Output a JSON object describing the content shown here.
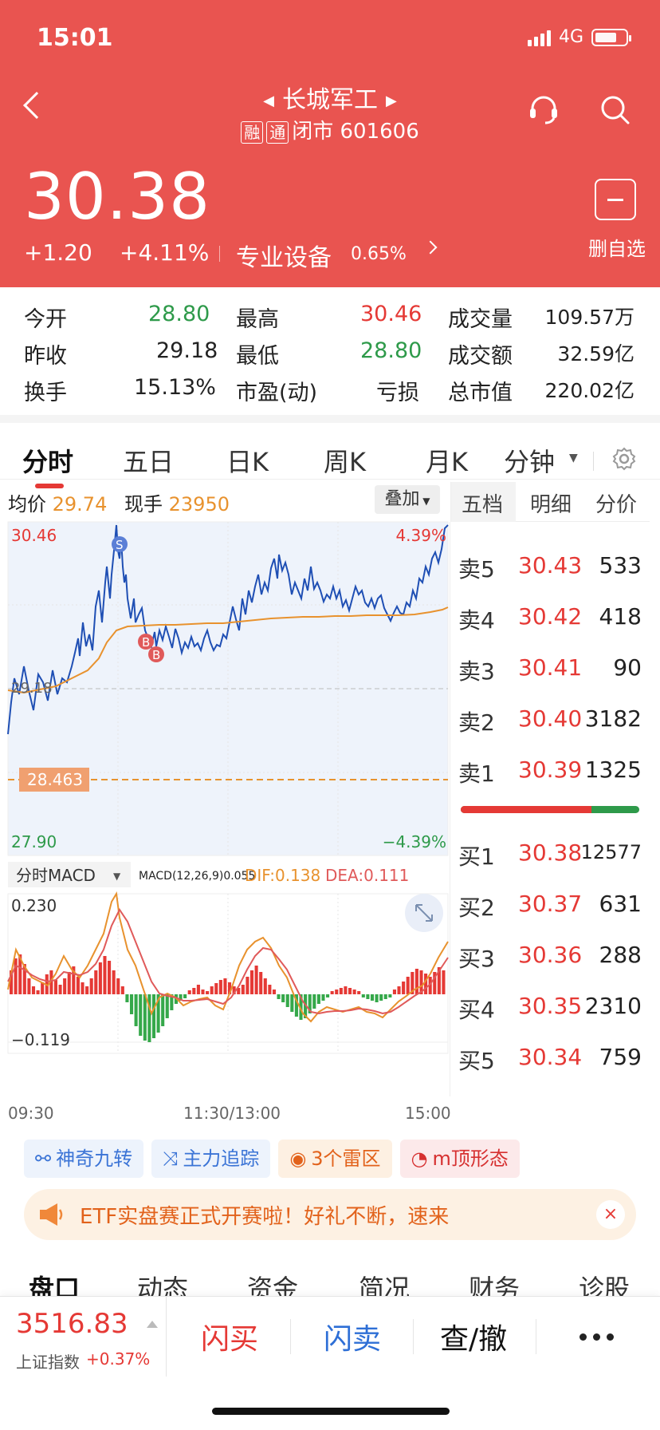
{
  "status": {
    "time": "15:01",
    "network": "4G"
  },
  "header": {
    "stock_name": "长城军工",
    "tag_margin": "融",
    "tag_connect": "通",
    "status_text": "闭市 601606",
    "price": "30.38",
    "change": "+1.20",
    "change_pct": "+4.11%",
    "sector": "专业设备",
    "sector_pct": "0.65%",
    "remove_label": "删自选"
  },
  "stats": {
    "open_label": "今开",
    "open": "28.80",
    "high_label": "最高",
    "high": "30.46",
    "volume_label": "成交量",
    "volume": "109.57万",
    "prev_label": "昨收",
    "prev": "29.18",
    "low_label": "最低",
    "low": "28.80",
    "amount_label": "成交额",
    "amount": "32.59亿",
    "turnover_label": "换手",
    "turnover": "15.13%",
    "pe_label": "市盈(动)",
    "pe": "亏损",
    "mktcap_label": "总市值",
    "mktcap": "220.02亿"
  },
  "tabs": [
    "分时",
    "五日",
    "日K",
    "周K",
    "月K",
    "分钟"
  ],
  "chart": {
    "avg_label": "均价",
    "avg": "29.74",
    "hand_label": "现手",
    "hand": "23950",
    "overlay_label": "叠加",
    "y_top": "30.46",
    "y_top_pct": "4.39%",
    "y_mid": "29.18",
    "y_bottom": "27.90",
    "y_bottom_pct": "−4.39%",
    "dashed_value": "28.463",
    "signal_s": "S",
    "signal_b": "B",
    "macd_tab": "分时MACD",
    "macd_params": "MACD(12,26,9)0.055",
    "dif": "DIF:0.138",
    "dea": "DEA:0.111",
    "macd_top": "0.230",
    "macd_bottom": "−0.119",
    "time_start": "09:30",
    "time_mid": "11:30/13:00",
    "time_end": "15:00"
  },
  "orderbook": {
    "tabs": [
      "五档",
      "明细",
      "分价"
    ],
    "sells": [
      {
        "label": "卖5",
        "price": "30.43",
        "vol": "533"
      },
      {
        "label": "卖4",
        "price": "30.42",
        "vol": "418"
      },
      {
        "label": "卖3",
        "price": "30.41",
        "vol": "90"
      },
      {
        "label": "卖2",
        "price": "30.40",
        "vol": "3182"
      },
      {
        "label": "卖1",
        "price": "30.39",
        "vol": "1325"
      }
    ],
    "buys": [
      {
        "label": "买1",
        "price": "30.38",
        "vol": "12577"
      },
      {
        "label": "买2",
        "price": "30.37",
        "vol": "631"
      },
      {
        "label": "买3",
        "price": "30.36",
        "vol": "288"
      },
      {
        "label": "买4",
        "price": "30.35",
        "vol": "2310"
      },
      {
        "label": "买5",
        "price": "30.34",
        "vol": "759"
      }
    ],
    "sell_ratio": 0.73
  },
  "chips": [
    "神奇九转",
    "主力追踪",
    "3个雷区",
    "m顶形态"
  ],
  "banner": {
    "text": "ETF实盘赛正式开赛啦！好礼不断，速来",
    "close": "×"
  },
  "bottom_tabs": [
    "盘口",
    "动态",
    "资金",
    "简况",
    "财务",
    "诊股"
  ],
  "footer": {
    "index_value": "3516.83",
    "index_name": "上证指数",
    "index_pct": "+0.37%",
    "buy": "闪买",
    "sell": "闪卖",
    "query": "查/撤"
  },
  "colors": {
    "brand": "#e95450",
    "up": "#e53935",
    "down": "#2e9a4a",
    "avg_line": "#e8922e",
    "price_line": "#1f4fb4"
  },
  "chart_data": {
    "type": "line",
    "x": [
      "09:30",
      "11:30/13:00",
      "15:00"
    ],
    "ylim": [
      27.9,
      30.46
    ],
    "prev_close": 29.18,
    "series": []
  }
}
